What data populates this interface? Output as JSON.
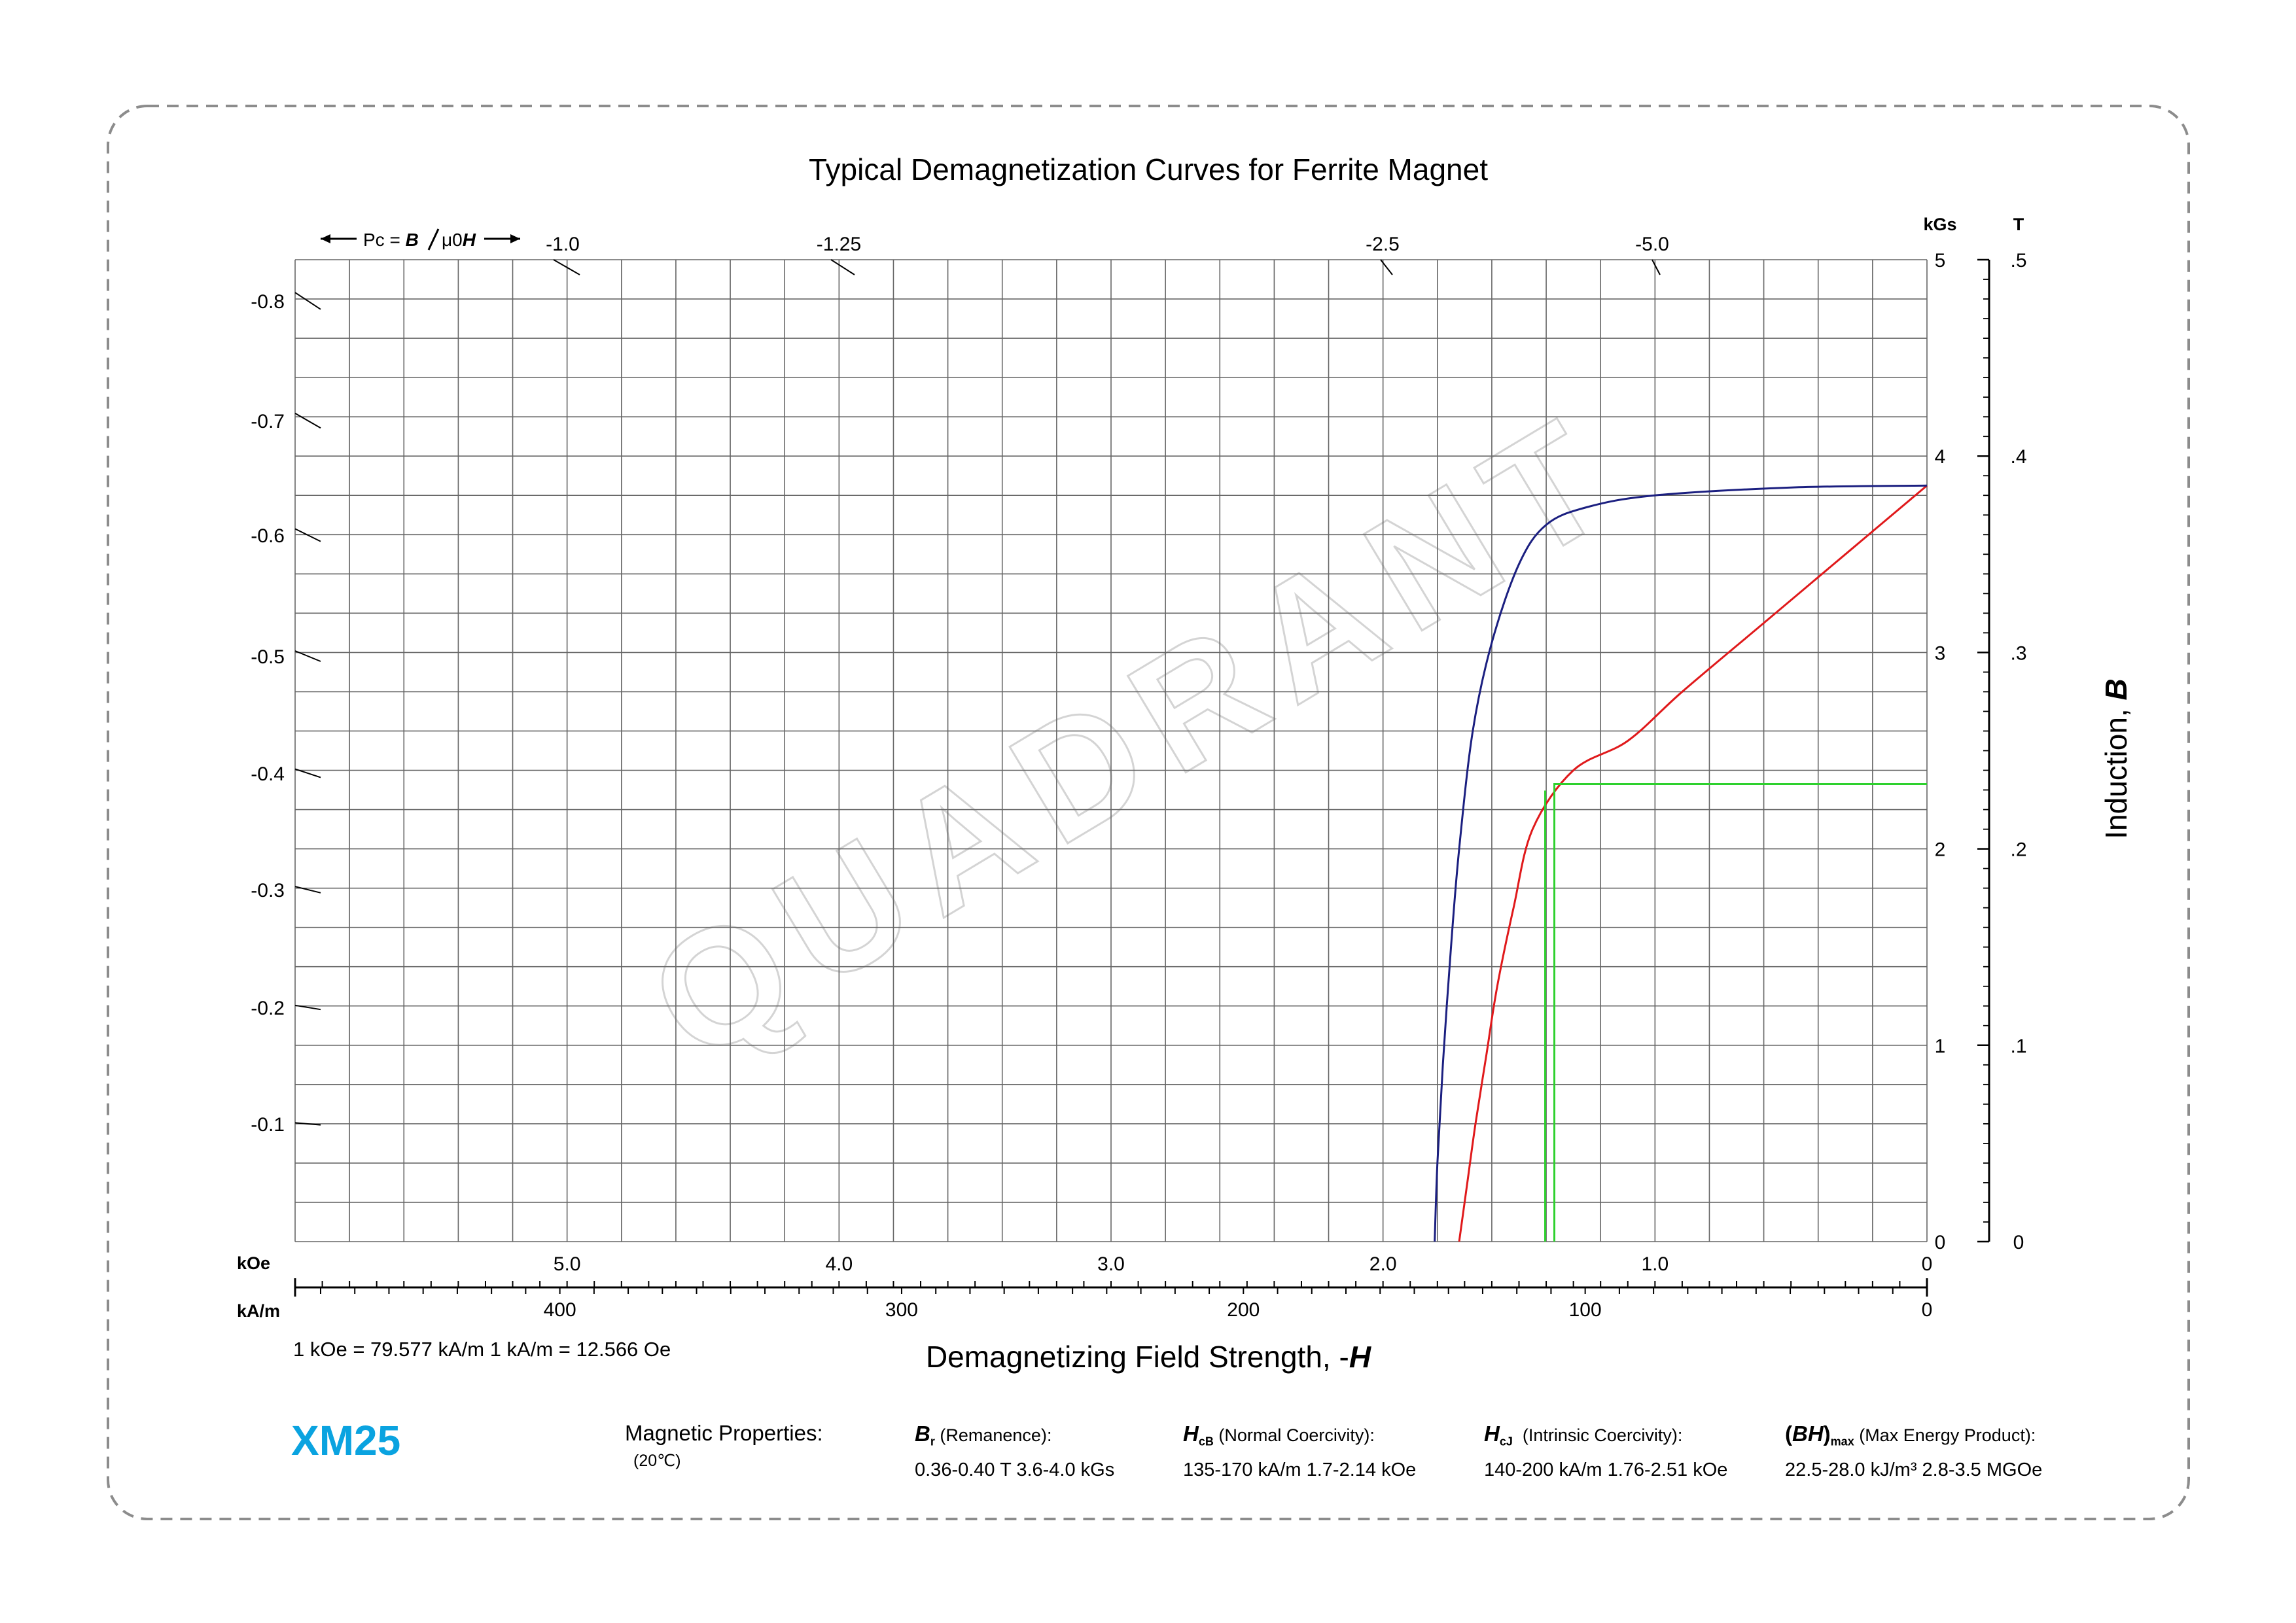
{
  "colors": {
    "frame": "#8c8c8c",
    "grid": "#666666",
    "normal_curve": "#e0191b",
    "intrinsic_curve": "#1b1f80",
    "operating_point": "#2ed12e",
    "brand": "#0aa3e0",
    "watermark": "#d4d4d4"
  },
  "watermark": "QUADRANT",
  "chart_data": {
    "type": "line",
    "title": "Typical Demagnetization Curves for Ferrite Magnet",
    "xlabel_prefix": "Demagnetizing Field Strength, -",
    "xlabel_symbol": "H",
    "ylabel_prefix": "Induction, ",
    "ylabel_symbol": "B",
    "x_unit": "kOe",
    "x_range_kOe": [
      6.0,
      0
    ],
    "x_ticks_kOe": [
      "5.0",
      "4.0",
      "3.0",
      "2.0",
      "1.0",
      "0"
    ],
    "x2_unit": "kA/m",
    "x2_ticks_kAm": [
      "400",
      "300",
      "200",
      "100",
      "0"
    ],
    "y_unit": "kGs",
    "y2_unit": "T",
    "y_range_kGs": [
      0,
      5
    ],
    "y_ticks_kGs": [
      "0",
      "1",
      "2",
      "3",
      "4",
      "5"
    ],
    "y2_ticks_T": [
      "0",
      ".1",
      ".2",
      ".3",
      ".4",
      ".5"
    ],
    "permeance_label_prefix": "Pc = ",
    "permeance_label_b": "B",
    "permeance_label_mu": "μ0",
    "permeance_label_h": "H",
    "permeance_left_ticks": [
      "-0.8",
      "-0.7",
      "-0.6",
      "-0.5",
      "-0.4",
      "-0.3",
      "-0.2",
      "-0.1"
    ],
    "permeance_top_ticks": [
      "-1.0",
      "-1.25",
      "-2.5",
      "-5.0"
    ],
    "series": [
      {
        "id": "normal",
        "x_kOe": [
          0,
          0.3,
          0.6,
          0.9,
          1.1,
          1.3,
          1.45,
          1.52,
          1.58,
          1.62,
          1.66,
          1.69,
          1.72
        ],
        "y_kGs": [
          3.85,
          3.5,
          3.15,
          2.8,
          2.55,
          2.4,
          2.1,
          1.7,
          1.3,
          0.95,
          0.6,
          0.3,
          0
        ]
      },
      {
        "id": "intrinsic",
        "x_kOe": [
          0,
          0.5,
          1.0,
          1.25,
          1.4,
          1.5,
          1.6,
          1.67,
          1.72,
          1.75,
          1.78,
          1.8,
          1.81
        ],
        "y_kGs": [
          3.85,
          3.84,
          3.8,
          3.74,
          3.65,
          3.45,
          3.05,
          2.6,
          2.0,
          1.5,
          0.9,
          0.4,
          0
        ]
      },
      {
        "id": "operating-point",
        "x_kOe": [
          0,
          1.37,
          1.37
        ],
        "y_kGs": [
          2.33,
          2.33,
          0
        ]
      }
    ]
  },
  "unit_conversion": "1 kOe = 79.577 kA/m   1 kA/m = 12.566 Oe",
  "model": "XM25",
  "properties": {
    "title": "Magnetic Properties:",
    "temperature": "(20℃)",
    "br_symbol": "B",
    "br_sub": "r",
    "br_label": "(Remanence):",
    "br_value": "0.36-0.40 T   3.6-4.0 kGs",
    "hcb_symbol": "H",
    "hcb_sub": "cB",
    "hcb_label": "(Normal Coercivity):",
    "hcb_value": "135-170 kA/m   1.7-2.14 kOe",
    "hcj_symbol": "H",
    "hcj_sub": "cJ",
    "hcj_label": "(Intrinsic Coercivity):",
    "hcj_value": "140-200 kA/m    1.76-2.51 kOe",
    "bh_open": "(",
    "bh_symbol": "BH",
    "bh_close": ")",
    "bh_sub": "max",
    "bh_label": "(Max Energy Product):",
    "bh_value": "22.5-28.0 kJ/m³   2.8-3.5 MGOe"
  }
}
